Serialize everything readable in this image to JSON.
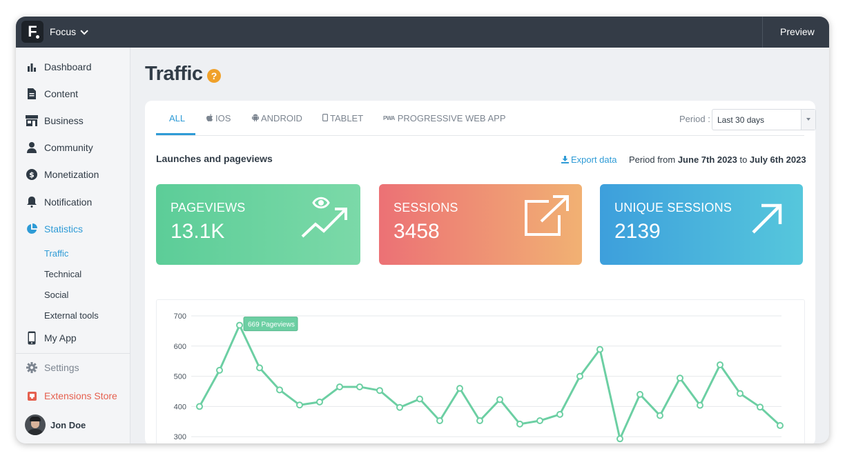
{
  "topbar": {
    "app_name": "Focus",
    "preview_label": "Preview",
    "logo_letter": "F"
  },
  "sidebar": {
    "items": [
      {
        "label": "Dashboard",
        "icon": "bar-chart-icon"
      },
      {
        "label": "Content",
        "icon": "document-icon"
      },
      {
        "label": "Business",
        "icon": "store-icon"
      },
      {
        "label": "Community",
        "icon": "person-icon"
      },
      {
        "label": "Monetization",
        "icon": "dollar-icon"
      },
      {
        "label": "Notification",
        "icon": "bell-icon"
      },
      {
        "label": "Statistics",
        "icon": "pie-chart-icon"
      }
    ],
    "sub_items": [
      {
        "label": "Traffic"
      },
      {
        "label": "Technical"
      },
      {
        "label": "Social"
      },
      {
        "label": "External tools"
      }
    ],
    "my_app": {
      "label": "My App",
      "icon": "phone-icon"
    },
    "settings": {
      "label": "Settings",
      "icon": "gear-icon"
    },
    "extensions": {
      "label": "Extensions Store",
      "icon": "store-badge-icon",
      "color": "#e5604f"
    },
    "user": {
      "name": "Jon Doe"
    }
  },
  "page": {
    "title": "Traffic",
    "help": "?"
  },
  "tabs": [
    {
      "label": "ALL",
      "icon": ""
    },
    {
      "label": "IOS",
      "icon": "apple-icon"
    },
    {
      "label": "ANDROID",
      "icon": "android-icon"
    },
    {
      "label": "TABLET",
      "icon": "tablet-icon"
    },
    {
      "label": "PROGRESSIVE WEB APP",
      "icon": "pwa-icon",
      "badge": "PWA"
    }
  ],
  "period": {
    "label": "Period :",
    "selected": "Last 30 days"
  },
  "section": {
    "title": "Launches and pageviews",
    "export_label": "Export data",
    "period_prefix": "Period from",
    "period_start": "June 7th 2023",
    "period_mid": "to",
    "period_end": "July 6th 2023"
  },
  "stats": [
    {
      "label": "PAGEVIEWS",
      "value": "13.1K",
      "icon": "eye-trend-icon"
    },
    {
      "label": "SESSIONS",
      "value": "3458",
      "icon": "external-link-icon"
    },
    {
      "label": "UNIQUE SESSIONS",
      "value": "2139",
      "icon": "arrow-up-right-icon"
    }
  ],
  "colors": {
    "accent": "#2e9bd6",
    "line": "#6ccfa3",
    "help": "#f0a12a"
  },
  "chart_data": {
    "type": "line",
    "y_ticks": [
      700,
      600,
      500,
      400,
      300
    ],
    "ylim": [
      280,
      700
    ],
    "grid": true,
    "tooltip": {
      "text": "669 Pageviews",
      "index": 2
    },
    "series": [
      {
        "values": [
          400,
          520,
          669,
          528,
          455,
          405,
          415,
          465,
          465,
          453,
          397,
          425,
          353,
          460,
          353,
          423,
          342,
          353,
          374,
          500,
          589,
          293,
          440,
          370,
          494,
          404,
          538,
          443,
          398,
          337
        ]
      }
    ]
  }
}
